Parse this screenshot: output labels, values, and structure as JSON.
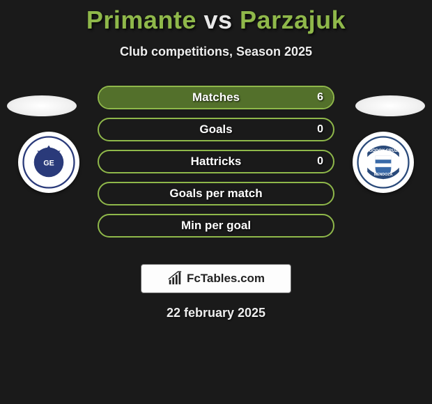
{
  "title": {
    "player1": "Primante",
    "vs": "vs",
    "player2": "Parzajuk"
  },
  "subtitle": "Club competitions, Season 2025",
  "colors": {
    "accent": "#8fb84a",
    "bar_border": "#8fb84a",
    "bar_fill": "#5a7a2e",
    "bg": "#1a1a1a"
  },
  "stats": [
    {
      "label": "Matches",
      "value": "6",
      "fill_pct": 100
    },
    {
      "label": "Goals",
      "value": "0",
      "fill_pct": 0
    },
    {
      "label": "Hattricks",
      "value": "0",
      "fill_pct": 0
    },
    {
      "label": "Goals per match",
      "value": "",
      "fill_pct": 0
    },
    {
      "label": "Min per goal",
      "value": "",
      "fill_pct": 0
    }
  ],
  "brand": "FcTables.com",
  "date": "22 february 2025",
  "crest_left": {
    "primary": "#2a3a7a",
    "secondary": "#ffffff"
  },
  "crest_right": {
    "primary": "#3a6aa8",
    "secondary": "#ffffff",
    "band": "#2a4a7a"
  }
}
